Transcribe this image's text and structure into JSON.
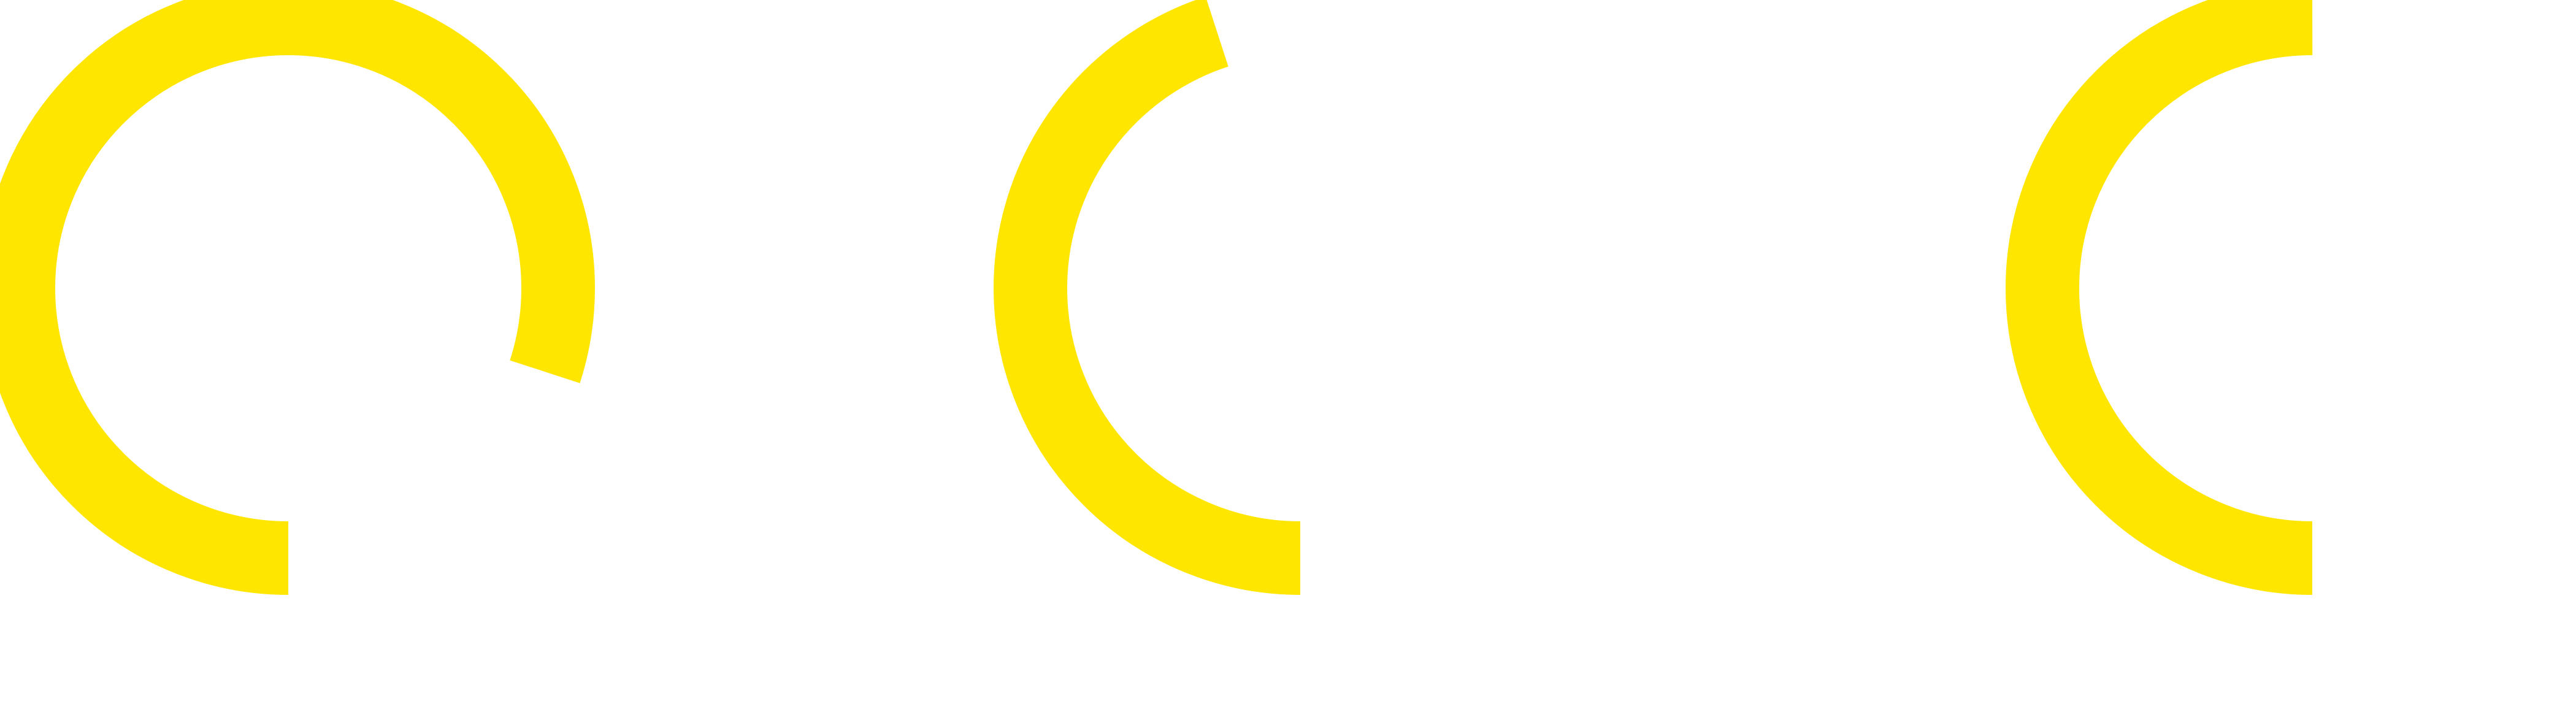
{
  "colors": {
    "background": "#ffffff",
    "ring_track": "#ffffff",
    "ring_progress": "#FFE600"
  },
  "rings": [
    {
      "name": "progress-ring-1",
      "progress_percent": 80
    },
    {
      "name": "progress-ring-2",
      "progress_percent": 45
    },
    {
      "name": "progress-ring-3",
      "progress_percent": 50
    }
  ]
}
